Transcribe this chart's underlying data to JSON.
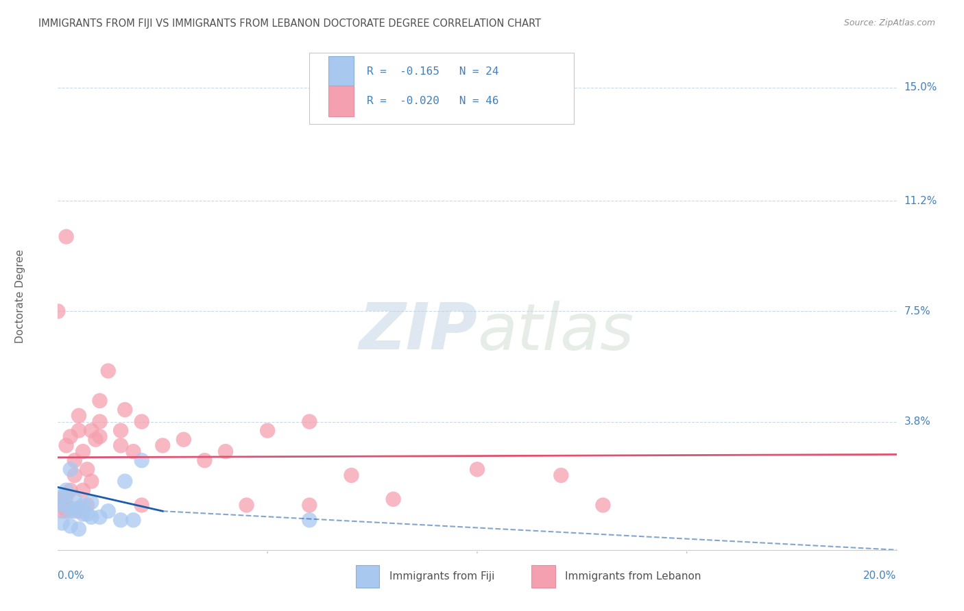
{
  "title": "IMMIGRANTS FROM FIJI VS IMMIGRANTS FROM LEBANON DOCTORATE DEGREE CORRELATION CHART",
  "source": "Source: ZipAtlas.com",
  "ylabel": "Doctorate Degree",
  "ytick_labels": [
    "15.0%",
    "11.2%",
    "7.5%",
    "3.8%"
  ],
  "ytick_vals": [
    15.0,
    11.2,
    7.5,
    3.8
  ],
  "xlim": [
    0.0,
    20.0
  ],
  "ylim": [
    -0.5,
    16.5
  ],
  "fiji_color": "#a8c8f0",
  "lebanon_color": "#f5a0b0",
  "fiji_line_color": "#1a5ca8",
  "lebanon_line_color": "#e05070",
  "fiji_R": -0.165,
  "fiji_N": 24,
  "lebanon_R": -0.02,
  "lebanon_N": 46,
  "fiji_points": [
    [
      0.0,
      1.0
    ],
    [
      0.2,
      1.5
    ],
    [
      0.3,
      0.8
    ],
    [
      0.4,
      1.2
    ],
    [
      0.5,
      0.9
    ],
    [
      0.6,
      1.0
    ],
    [
      0.7,
      0.7
    ],
    [
      0.8,
      1.1
    ],
    [
      1.0,
      0.6
    ],
    [
      1.2,
      0.8
    ],
    [
      1.5,
      0.5
    ],
    [
      1.6,
      1.8
    ],
    [
      1.8,
      0.5
    ],
    [
      2.0,
      2.5
    ],
    [
      0.3,
      2.2
    ],
    [
      0.1,
      1.3
    ],
    [
      0.2,
      1.0
    ],
    [
      0.4,
      0.8
    ],
    [
      0.6,
      0.7
    ],
    [
      0.8,
      0.6
    ],
    [
      6.0,
      0.5
    ],
    [
      0.1,
      0.4
    ],
    [
      0.3,
      0.3
    ],
    [
      0.5,
      0.2
    ]
  ],
  "lebanon_points": [
    [
      0.0,
      1.2
    ],
    [
      0.1,
      1.1
    ],
    [
      0.2,
      1.3
    ],
    [
      0.2,
      3.0
    ],
    [
      0.3,
      0.9
    ],
    [
      0.4,
      2.5
    ],
    [
      0.5,
      4.0
    ],
    [
      0.5,
      3.5
    ],
    [
      0.6,
      2.8
    ],
    [
      0.7,
      2.2
    ],
    [
      0.8,
      1.8
    ],
    [
      0.9,
      3.2
    ],
    [
      1.0,
      4.5
    ],
    [
      1.0,
      3.8
    ],
    [
      1.2,
      5.5
    ],
    [
      1.5,
      3.5
    ],
    [
      1.6,
      4.2
    ],
    [
      1.8,
      2.8
    ],
    [
      2.0,
      3.8
    ],
    [
      2.5,
      3.0
    ],
    [
      3.0,
      3.2
    ],
    [
      3.5,
      2.5
    ],
    [
      4.0,
      2.8
    ],
    [
      4.5,
      1.0
    ],
    [
      5.0,
      3.5
    ],
    [
      6.0,
      3.8
    ],
    [
      7.0,
      2.0
    ],
    [
      8.0,
      1.2
    ],
    [
      10.0,
      2.2
    ],
    [
      12.0,
      2.0
    ],
    [
      0.0,
      7.5
    ],
    [
      0.1,
      0.8
    ],
    [
      0.2,
      0.8
    ],
    [
      0.3,
      1.5
    ],
    [
      0.4,
      2.0
    ],
    [
      0.6,
      1.5
    ],
    [
      0.7,
      1.0
    ],
    [
      0.8,
      3.5
    ],
    [
      1.5,
      3.0
    ],
    [
      2.0,
      1.0
    ],
    [
      6.0,
      1.0
    ],
    [
      13.0,
      1.0
    ],
    [
      0.2,
      10.0
    ],
    [
      0.5,
      0.8
    ],
    [
      0.3,
      3.3
    ],
    [
      1.0,
      3.3
    ]
  ],
  "watermark_zip": "ZIP",
  "watermark_atlas": "atlas",
  "background_color": "#ffffff",
  "grid_color": "#c8d8e8",
  "title_color": "#505050",
  "axis_label_color": "#4080c0",
  "ylabel_color": "#606060"
}
